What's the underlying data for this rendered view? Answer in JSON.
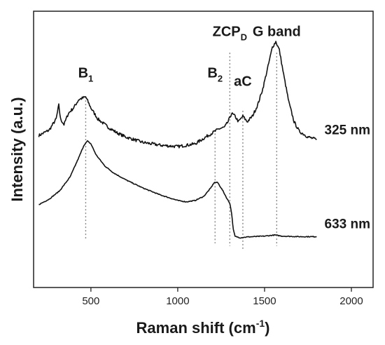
{
  "chart_data": {
    "type": "line",
    "xlabel": "Raman shift (cm",
    "xlabel_sup": "-1",
    "xlabel_close": ")",
    "ylabel": "Intensity (a.u.)",
    "xlim": [
      170,
      2125
    ],
    "ylim": [
      0,
      100
    ],
    "x_ticks": [
      500,
      1000,
      1500,
      2000
    ],
    "y_ticks": false,
    "grid": false,
    "series": [
      {
        "name": "325 nm",
        "color": "#111111",
        "points": [
          [
            200,
            55
          ],
          [
            260,
            57
          ],
          [
            300,
            61
          ],
          [
            315,
            66
          ],
          [
            325,
            61
          ],
          [
            345,
            59
          ],
          [
            370,
            63
          ],
          [
            400,
            65
          ],
          [
            430,
            68
          ],
          [
            470,
            69
          ],
          [
            500,
            65
          ],
          [
            540,
            61
          ],
          [
            600,
            58
          ],
          [
            650,
            56
          ],
          [
            700,
            54.5
          ],
          [
            800,
            52.5
          ],
          [
            900,
            51.5
          ],
          [
            1000,
            51
          ],
          [
            1100,
            52
          ],
          [
            1150,
            54
          ],
          [
            1200,
            56
          ],
          [
            1240,
            57.5
          ],
          [
            1270,
            58
          ],
          [
            1290,
            60
          ],
          [
            1310,
            63
          ],
          [
            1330,
            62
          ],
          [
            1350,
            60
          ],
          [
            1375,
            62
          ],
          [
            1400,
            60
          ],
          [
            1430,
            62
          ],
          [
            1460,
            66
          ],
          [
            1490,
            72
          ],
          [
            1520,
            80
          ],
          [
            1545,
            87
          ],
          [
            1565,
            89
          ],
          [
            1585,
            86
          ],
          [
            1610,
            77
          ],
          [
            1640,
            67
          ],
          [
            1670,
            60
          ],
          [
            1700,
            56.5
          ],
          [
            1750,
            54.5
          ],
          [
            1800,
            53.5
          ]
        ]
      },
      {
        "name": "633 nm",
        "color": "#111111",
        "points": [
          [
            200,
            30
          ],
          [
            260,
            32
          ],
          [
            320,
            35
          ],
          [
            380,
            40
          ],
          [
            430,
            47
          ],
          [
            460,
            51.5
          ],
          [
            480,
            53
          ],
          [
            500,
            52
          ],
          [
            530,
            48
          ],
          [
            580,
            44
          ],
          [
            630,
            41.5
          ],
          [
            700,
            39
          ],
          [
            800,
            36
          ],
          [
            900,
            33.5
          ],
          [
            1000,
            31.5
          ],
          [
            1050,
            31
          ],
          [
            1100,
            31.5
          ],
          [
            1150,
            33
          ],
          [
            1190,
            36
          ],
          [
            1210,
            38
          ],
          [
            1230,
            38
          ],
          [
            1260,
            35
          ],
          [
            1285,
            32
          ],
          [
            1300,
            30.5
          ],
          [
            1310,
            27
          ],
          [
            1320,
            21
          ],
          [
            1330,
            18.5
          ],
          [
            1360,
            18
          ],
          [
            1400,
            18.3
          ],
          [
            1500,
            18.6
          ],
          [
            1560,
            19
          ],
          [
            1600,
            18.6
          ],
          [
            1700,
            18.4
          ],
          [
            1800,
            18.4
          ]
        ]
      }
    ],
    "series_labels": [
      {
        "text": "325 nm",
        "x": 1845,
        "y": 57
      },
      {
        "text": "633 nm",
        "x": 1845,
        "y": 23
      }
    ],
    "peaks": [
      {
        "label": "B",
        "sub": "1",
        "x": 470,
        "line_top": 69,
        "line_bottom": 17,
        "label_y": 76
      },
      {
        "label": "B",
        "sub": "2",
        "x": 1215,
        "line_top": 57,
        "line_bottom": 16,
        "label_y": 76
      },
      {
        "label": "ZCP",
        "sub": "D",
        "x": 1300,
        "line_top": 85,
        "line_bottom": 15,
        "label_y": 91
      },
      {
        "label": "aC",
        "sub": "",
        "x": 1375,
        "line_top": 64,
        "line_bottom": 14,
        "label_y": 73
      },
      {
        "label": "G band",
        "sub": "",
        "x": 1570,
        "line_top": 85,
        "line_bottom": 15,
        "label_y": 91
      }
    ]
  }
}
